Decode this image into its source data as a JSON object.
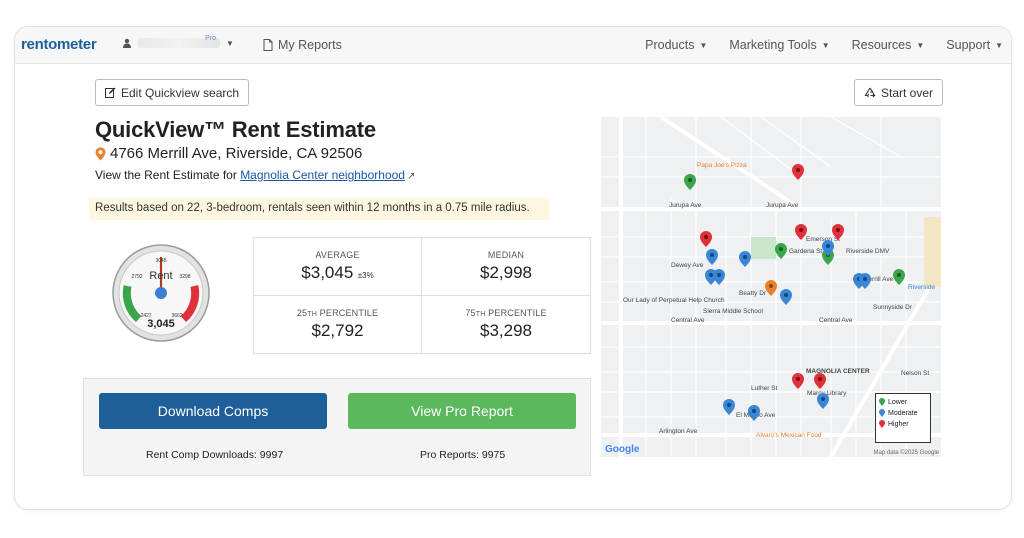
{
  "nav": {
    "logo": "rentometer",
    "user_badge": "Pro",
    "reports": "My Reports",
    "menu": [
      "Products",
      "Marketing Tools",
      "Resources",
      "Support"
    ]
  },
  "actions": {
    "edit": "Edit Quickview search",
    "start_over": "Start over"
  },
  "header": {
    "title": "QuickView™ Rent Estimate",
    "address": "4766 Merrill Ave, Riverside, CA 92506",
    "view_prefix": "View the Rent Estimate for",
    "neighborhood_link": "Magnolia Center neighborhood"
  },
  "results_note": "Results based on 22, 3-bedroom, rentals seen within 12 months in a 0.75 mile radius.",
  "gauge": {
    "label": "Rent",
    "value": "3,045",
    "ticks": [
      "2427",
      "2792",
      "3045",
      "3298",
      "3662"
    ],
    "colors": {
      "low": "#3aa64a",
      "mid": "#f2f2f2",
      "high": "#e0303a",
      "needle": "#b03a22",
      "hub": "#3a7fd5"
    }
  },
  "stats": {
    "average_label": "AVERAGE",
    "average_value": "$3,045",
    "average_sub": "±3%",
    "median_label": "MEDIAN",
    "median_value": "$2,998",
    "p25_num": "25",
    "p25_sup": "TH",
    "p25_word": "PERCENTILE",
    "p25_value": "$2,792",
    "p75_num": "75",
    "p75_sup": "TH",
    "p75_word": "PERCENTILE",
    "p75_value": "$3,298"
  },
  "buttons": {
    "download": "Download Comps",
    "pro": "View Pro Report",
    "download_count": "Rent Comp Downloads: 9997",
    "pro_count": "Pro Reports: 9975"
  },
  "map": {
    "streets": [
      "Jurupa Ave",
      "Jurupa Ave",
      "Central Ave",
      "Central Ave",
      "Arlington Ave",
      "Sierra Middle School",
      "Merrill Ave",
      "Beatty Dr",
      "Dewey Ave",
      "Gardena St",
      "Emerson St",
      "Marcy Library",
      "MAGNOLIA CENTER",
      "Our Lady of Perpetual Help Church",
      "Riverside DMV",
      "Alvaro's Mexican Food",
      "Papa Joe's Pizza",
      "Luther St",
      "El Molino Ave",
      "Sunnyside Dr",
      "Nelson St",
      "Riverside"
    ],
    "legend": [
      "Lower",
      "Moderate",
      "Higher"
    ],
    "legend_colors": {
      "lower": "#3aa64a",
      "moderate": "#3a86d6",
      "higher": "#e0303a",
      "other": "#e8812b"
    },
    "credit": "Map data ©2025 Google",
    "google": "Google"
  }
}
